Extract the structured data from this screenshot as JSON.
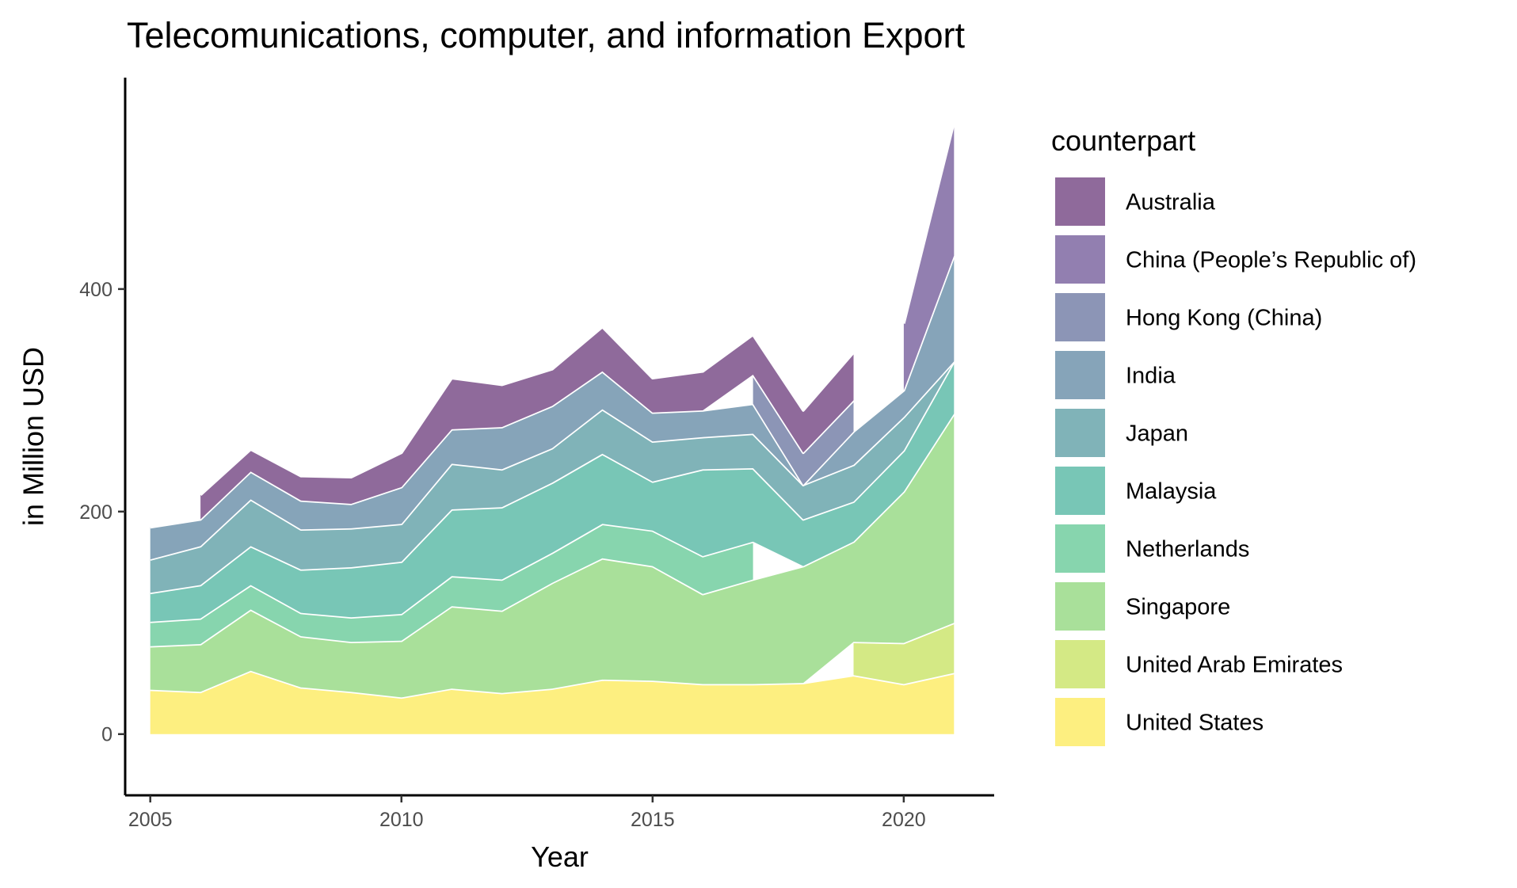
{
  "chart_data": {
    "type": "area",
    "stacked": true,
    "title": "Telecomunications, computer, and information Export",
    "xlabel": "Year",
    "ylabel": "in Million USD",
    "xlim": [
      2004.5,
      2021.8
    ],
    "ylim": [
      -55,
      590
    ],
    "x_ticks": [
      2005,
      2010,
      2015,
      2020
    ],
    "y_ticks": [
      0,
      200,
      400
    ],
    "grid": false,
    "legend_position": "right",
    "legend_title": "counterpart",
    "legend_order": [
      "Australia",
      "China (People’s Republic of)",
      "Hong Kong (China)",
      "India",
      "Japan",
      "Malaysia",
      "Netherlands",
      "Singapore",
      "United Arab Emirates",
      "United States"
    ],
    "colors": {
      "Australia": "#8f6a9b",
      "China (People’s Republic of)": "#927fb0",
      "Hong Kong (China)": "#8c95b6",
      "India": "#86a4b9",
      "Japan": "#80b3b8",
      "Malaysia": "#78c6b6",
      "Netherlands": "#87d5ae",
      "Singapore": "#a9e09a",
      "United Arab Emirates": "#d4e985",
      "United States": "#fdef80"
    },
    "stack_order_bottom_to_top": [
      "United States",
      "United Arab Emirates",
      "Singapore",
      "Netherlands",
      "Malaysia",
      "Japan",
      "India",
      "Hong Kong (China)",
      "China (People’s Republic of)",
      "Australia"
    ],
    "series": [
      {
        "name": "United States",
        "x": [
          2005,
          2006,
          2007,
          2008,
          2009,
          2010,
          2011,
          2012,
          2013,
          2014,
          2015,
          2016,
          2017,
          2018,
          2019,
          2020,
          2021
        ],
        "values": [
          40,
          38,
          57,
          42,
          38,
          33,
          41,
          37,
          41,
          49,
          48,
          45,
          45,
          46,
          53,
          45,
          55
        ]
      },
      {
        "name": "United Arab Emirates",
        "x": [
          2019,
          2020,
          2021
        ],
        "values": [
          30,
          37,
          45
        ]
      },
      {
        "name": "Singapore",
        "x": [
          2005,
          2006,
          2007,
          2008,
          2009,
          2010,
          2011,
          2012,
          2013,
          2014,
          2015,
          2016,
          2017,
          2018,
          2019,
          2020,
          2021
        ],
        "values": [
          39,
          43,
          55,
          46,
          45,
          51,
          74,
          74,
          95,
          109,
          103,
          81,
          94,
          105,
          90,
          136,
          188
        ]
      },
      {
        "name": "Netherlands",
        "x": [
          2005,
          2006,
          2007,
          2008,
          2009,
          2010,
          2011,
          2012,
          2013,
          2014,
          2015,
          2016,
          2017
        ],
        "values": [
          22,
          23,
          22,
          21,
          22,
          24,
          27,
          28,
          27,
          31,
          32,
          34,
          34
        ]
      },
      {
        "name": "Malaysia",
        "x": [
          2005,
          2006,
          2007,
          2008,
          2009,
          2010,
          2011,
          2012,
          2013,
          2014,
          2015,
          2016,
          2017,
          2018,
          2019,
          2020,
          2021
        ],
        "values": [
          26,
          30,
          35,
          39,
          45,
          47,
          60,
          65,
          63,
          63,
          44,
          78,
          66,
          42,
          36,
          37,
          47
        ]
      },
      {
        "name": "Japan",
        "x": [
          2005,
          2006,
          2007,
          2008,
          2009,
          2010,
          2011,
          2012,
          2013,
          2014,
          2015,
          2016,
          2017,
          2018,
          2019,
          2020,
          2021
        ],
        "values": [
          30,
          35,
          42,
          36,
          35,
          34,
          41,
          34,
          31,
          40,
          36,
          29,
          31,
          31,
          33,
          30,
          0
        ]
      },
      {
        "name": "India",
        "x": [
          2005,
          2006,
          2007,
          2008,
          2009,
          2010,
          2011,
          2012,
          2013,
          2014,
          2015,
          2016,
          2017,
          2018,
          2019,
          2020,
          2021
        ],
        "values": [
          29,
          24,
          25,
          26,
          22,
          33,
          31,
          38,
          38,
          34,
          26,
          24,
          27,
          0,
          30,
          24,
          95
        ]
      },
      {
        "name": "Hong Kong (China)",
        "x": [
          2017,
          2018,
          2019
        ],
        "values": [
          26,
          29,
          28
        ]
      },
      {
        "name": "China (People’s Republic of)",
        "x": [
          2020,
          2021
        ],
        "values": [
          60,
          120
        ]
      },
      {
        "name": "Australia",
        "x": [
          2006,
          2007,
          2008,
          2009,
          2010,
          2011,
          2012,
          2013,
          2014,
          2015,
          2016,
          2017,
          2018,
          2019
        ],
        "values": [
          22,
          20,
          22,
          24,
          31,
          46,
          38,
          33,
          40,
          31,
          35,
          36,
          38,
          43
        ]
      }
    ]
  }
}
